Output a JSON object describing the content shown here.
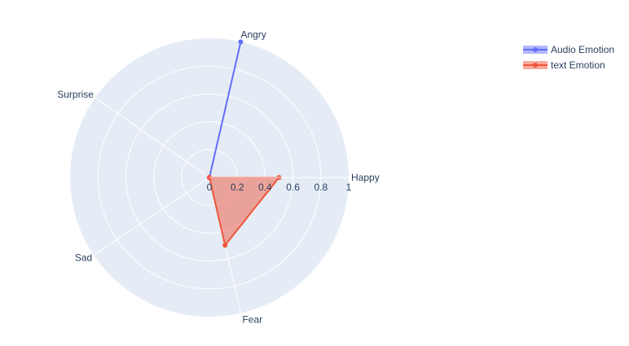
{
  "chart_data": {
    "type": "radar",
    "categories": [
      "Happy",
      "Angry",
      "Surprise",
      "Sad",
      "Fear"
    ],
    "radial_range": [
      0,
      1
    ],
    "radial_ticks": [
      "0",
      "0.2",
      "0.4",
      "0.6",
      "0.8",
      "1"
    ],
    "radial_tick_values": [
      0,
      0.2,
      0.4,
      0.6,
      0.8,
      1
    ],
    "grid": true,
    "legend_position": "top-right",
    "series": [
      {
        "name": "Audio Emotion",
        "values": [
          0,
          1,
          0,
          0,
          0
        ],
        "color": "#636efa",
        "fill": "toself"
      },
      {
        "name": "text Emotion",
        "values": [
          0.5,
          0,
          0,
          0,
          0.5
        ],
        "color": "#ef553b",
        "fill": "toself"
      }
    ]
  },
  "colors": {
    "polar_background": "#e5ecf6",
    "grid_line": "#ffffff",
    "text": "#2a3f5f"
  }
}
